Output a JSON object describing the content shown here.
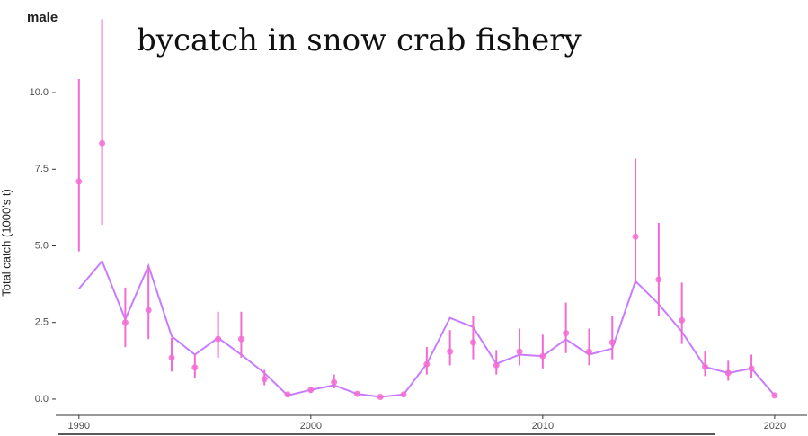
{
  "chart_data": {
    "type": "line",
    "title": "bycatch in snow crab fishery",
    "panel_label": "male",
    "y_label": "Total catch (1000's t)",
    "x": [
      1990,
      1991,
      1992,
      1993,
      1994,
      1995,
      1996,
      1997,
      1998,
      1999,
      2000,
      2001,
      2002,
      2003,
      2004,
      2005,
      2006,
      2007,
      2008,
      2009,
      2010,
      2011,
      2012,
      2013,
      2014,
      2015,
      2016,
      2017,
      2018,
      2019,
      2020
    ],
    "observed": {
      "color": "#f36bd2",
      "values": [
        7.1,
        8.35,
        2.5,
        2.9,
        1.35,
        1.03,
        1.96,
        1.96,
        0.65,
        0.15,
        0.3,
        0.55,
        0.17,
        0.07,
        0.15,
        1.14,
        1.55,
        1.85,
        1.1,
        1.55,
        1.4,
        2.15,
        1.55,
        1.85,
        5.3,
        3.9,
        2.57,
        1.05,
        0.85,
        1.0,
        0.12
      ],
      "lower": [
        4.82,
        5.69,
        1.7,
        1.96,
        0.9,
        0.7,
        1.35,
        1.35,
        0.45,
        0.12,
        0.2,
        0.35,
        0.14,
        0.05,
        0.12,
        0.8,
        1.1,
        1.3,
        0.8,
        1.1,
        1.0,
        1.5,
        1.1,
        1.3,
        3.75,
        2.7,
        1.8,
        0.75,
        0.6,
        0.7,
        0.1
      ],
      "upper": [
        10.44,
        12.4,
        3.64,
        4.31,
        2.0,
        1.45,
        2.85,
        2.85,
        0.95,
        0.18,
        0.4,
        0.8,
        0.2,
        0.09,
        0.18,
        1.7,
        2.25,
        2.7,
        1.6,
        2.3,
        2.1,
        3.15,
        2.3,
        2.7,
        7.85,
        5.75,
        3.8,
        1.55,
        1.25,
        1.45,
        0.15
      ]
    },
    "series": [
      {
        "color": "#c77cff",
        "values": [
          3.6,
          4.5,
          2.6,
          4.35,
          2.05,
          1.45,
          2.0,
          1.45,
          0.85,
          0.12,
          0.3,
          0.45,
          0.17,
          0.07,
          0.15,
          1.15,
          2.65,
          2.35,
          1.15,
          1.45,
          1.4,
          1.95,
          1.45,
          1.65,
          3.85,
          3.1,
          2.2,
          1.05,
          0.85,
          1.0,
          0.12
        ]
      }
    ],
    "xlim": [
      1989,
      2021.4
    ],
    "ylim": [
      -0.53,
      12.73
    ],
    "xticks": [
      1990,
      2000,
      2010,
      2020
    ],
    "yticks": [
      {
        "value": 0,
        "label": "0.0"
      },
      {
        "value": 2.5,
        "label": "2.5"
      },
      {
        "value": 5,
        "label": "5.0"
      },
      {
        "value": 7.5,
        "label": "7.5"
      },
      {
        "value": 10,
        "label": "10.0"
      }
    ]
  }
}
